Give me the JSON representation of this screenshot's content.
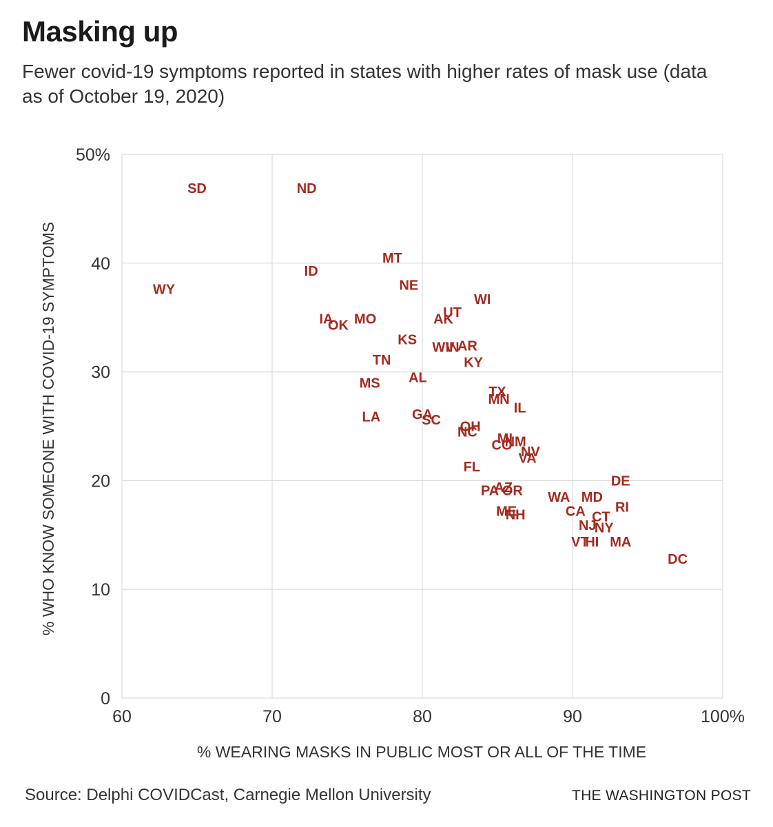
{
  "header": {
    "title": "Masking up",
    "subtitle": "Fewer covid-19 symptoms reported in states with higher rates of mask use (data as of October 19, 2020)"
  },
  "footer": {
    "source": "Source: Delphi COVIDCast, Carnegie Mellon University",
    "credit": "THE WASHINGTON POST"
  },
  "colors": {
    "label": "#a32a1f",
    "grid": "#dcdcdc",
    "axis_text": "#333333"
  },
  "chart_data": {
    "type": "scatter",
    "title": "Masking up",
    "subtitle": "Fewer covid-19 symptoms reported in states with higher rates of mask use (data as of October 19, 2020)",
    "xlabel": "% WEARING MASKS IN PUBLIC MOST OR ALL OF THE TIME",
    "ylabel": "% WHO KNOW SOMEONE WITH COVID-19 SYMPTOMS",
    "xlim": [
      60,
      100
    ],
    "ylim": [
      0,
      50
    ],
    "x_ticks": [
      {
        "value": 60,
        "label": "60"
      },
      {
        "value": 70,
        "label": "70"
      },
      {
        "value": 80,
        "label": "80"
      },
      {
        "value": 90,
        "label": "90"
      },
      {
        "value": 100,
        "label": "100%"
      }
    ],
    "y_ticks": [
      {
        "value": 0,
        "label": "0"
      },
      {
        "value": 10,
        "label": "10"
      },
      {
        "value": 20,
        "label": "20"
      },
      {
        "value": 30,
        "label": "30"
      },
      {
        "value": 40,
        "label": "40"
      },
      {
        "value": 50,
        "label": "50%"
      }
    ],
    "grid": true,
    "point_labels": true,
    "points": [
      {
        "label": "SD",
        "x": 65.0,
        "y": 46.9
      },
      {
        "label": "ND",
        "x": 72.3,
        "y": 46.9
      },
      {
        "label": "MT",
        "x": 78.0,
        "y": 40.5
      },
      {
        "label": "ID",
        "x": 72.6,
        "y": 39.3
      },
      {
        "label": "WY",
        "x": 62.8,
        "y": 37.6
      },
      {
        "label": "NE",
        "x": 79.1,
        "y": 38.0
      },
      {
        "label": "WI",
        "x": 84.0,
        "y": 36.7
      },
      {
        "label": "UT",
        "x": 82.0,
        "y": 35.5
      },
      {
        "label": "AK",
        "x": 81.4,
        "y": 34.9
      },
      {
        "label": "IA",
        "x": 73.6,
        "y": 34.9
      },
      {
        "label": "OK",
        "x": 74.4,
        "y": 34.3
      },
      {
        "label": "MO",
        "x": 76.2,
        "y": 34.9
      },
      {
        "label": "KS",
        "x": 79.0,
        "y": 33.0
      },
      {
        "label": "WV",
        "x": 81.4,
        "y": 32.3
      },
      {
        "label": "IN",
        "x": 82.0,
        "y": 32.3
      },
      {
        "label": "AR",
        "x": 83.0,
        "y": 32.4
      },
      {
        "label": "KY",
        "x": 83.4,
        "y": 30.9
      },
      {
        "label": "TN",
        "x": 77.3,
        "y": 31.1
      },
      {
        "label": "AL",
        "x": 79.7,
        "y": 29.5
      },
      {
        "label": "MS",
        "x": 76.5,
        "y": 29.0
      },
      {
        "label": "TX",
        "x": 85.0,
        "y": 28.2
      },
      {
        "label": "MN",
        "x": 85.1,
        "y": 27.5
      },
      {
        "label": "IL",
        "x": 86.5,
        "y": 26.7
      },
      {
        "label": "LA",
        "x": 76.6,
        "y": 25.9
      },
      {
        "label": "GA",
        "x": 80.0,
        "y": 26.1
      },
      {
        "label": "SC",
        "x": 80.6,
        "y": 25.6
      },
      {
        "label": "OH",
        "x": 83.2,
        "y": 25.0
      },
      {
        "label": "NC",
        "x": 83.0,
        "y": 24.5
      },
      {
        "label": "MI",
        "x": 85.5,
        "y": 23.9
      },
      {
        "label": "CO",
        "x": 85.3,
        "y": 23.3
      },
      {
        "label": "NM",
        "x": 86.2,
        "y": 23.6
      },
      {
        "label": "NV",
        "x": 87.2,
        "y": 22.7
      },
      {
        "label": "VA",
        "x": 87.0,
        "y": 22.1
      },
      {
        "label": "FL",
        "x": 83.3,
        "y": 21.3
      },
      {
        "label": "PA",
        "x": 84.5,
        "y": 19.1
      },
      {
        "label": "AZ",
        "x": 85.4,
        "y": 19.4
      },
      {
        "label": "OR",
        "x": 86.0,
        "y": 19.1
      },
      {
        "label": "DE",
        "x": 93.2,
        "y": 20.0
      },
      {
        "label": "WA",
        "x": 89.1,
        "y": 18.5
      },
      {
        "label": "MD",
        "x": 91.3,
        "y": 18.5
      },
      {
        "label": "RI",
        "x": 93.3,
        "y": 17.6
      },
      {
        "label": "CA",
        "x": 90.2,
        "y": 17.2
      },
      {
        "label": "ME",
        "x": 85.6,
        "y": 17.2
      },
      {
        "label": "NH",
        "x": 86.2,
        "y": 16.9
      },
      {
        "label": "CT",
        "x": 91.9,
        "y": 16.7
      },
      {
        "label": "NJ",
        "x": 91.0,
        "y": 15.9
      },
      {
        "label": "NY",
        "x": 92.1,
        "y": 15.7
      },
      {
        "label": "VT",
        "x": 90.5,
        "y": 14.4
      },
      {
        "label": "HI",
        "x": 91.3,
        "y": 14.4
      },
      {
        "label": "MA",
        "x": 93.2,
        "y": 14.4
      },
      {
        "label": "DC",
        "x": 97.0,
        "y": 12.8
      }
    ]
  }
}
